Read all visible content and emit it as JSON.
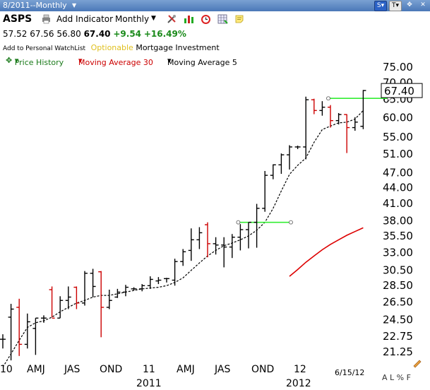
{
  "window": {
    "title": "8/2011--Monthly"
  },
  "toolbar": {
    "symbol": "ASPS",
    "add_indicator": "Add Indicator",
    "period": "Monthly",
    "icons": [
      "printer-icon",
      "tools-icon",
      "candles-icon",
      "alarm-clock-icon",
      "grid-icon",
      "note-icon"
    ]
  },
  "quote": {
    "open": "57.52",
    "high": "67.56",
    "low": "56.80",
    "last": "67.40",
    "change": "+9.54",
    "pct": "+16.49%"
  },
  "info": {
    "watchlist": "Add to Personal WatchList",
    "optionable": "Optionable",
    "industry": "Mortgage Investment"
  },
  "legend": {
    "price": {
      "label": "Price History",
      "color": "#1a7a1a"
    },
    "ma30": {
      "label": "Moving Average 30",
      "color": "#cc0000"
    },
    "ma5": {
      "label": "Moving Average 5",
      "color": "#000000"
    }
  },
  "bottom": {
    "date": "6/15/12",
    "toolbar": "A L % F"
  },
  "chart_data": {
    "type": "ohlc",
    "ytick_labels": [
      "75.00",
      "70.00",
      "65.00",
      "60.00",
      "55.00",
      "51.00",
      "47.00",
      "44.00",
      "41.00",
      "38.00",
      "35.50",
      "33.00",
      "30.50",
      "28.50",
      "26.50",
      "24.50",
      "22.75",
      "21.25"
    ],
    "y_scale": "log",
    "ylim": [
      20.2,
      76
    ],
    "last_price_label": "67.40",
    "x_labels": [
      "10",
      "AMJ",
      "JAS",
      "OND",
      "11",
      "AMJ",
      "JAS",
      "OND",
      "12"
    ],
    "year_labels": [
      "2011",
      "2012"
    ],
    "bars": [
      {
        "o": 22.4,
        "h": 22.9,
        "l": 21.5,
        "c": 22.4,
        "col": "#000"
      },
      {
        "o": 24.7,
        "h": 26.2,
        "l": 20.4,
        "c": 25.6,
        "col": "#000"
      },
      {
        "o": 25.8,
        "h": 26.8,
        "l": 20.8,
        "c": 21.9,
        "col": "#c00"
      },
      {
        "o": 21.9,
        "h": 25.1,
        "l": 21.5,
        "c": 24.2,
        "col": "#000"
      },
      {
        "o": 23.5,
        "h": 24.6,
        "l": 20.9,
        "c": 24.6,
        "col": "#000"
      },
      {
        "o": 24.6,
        "h": 24.9,
        "l": 24.1,
        "c": 24.6,
        "col": "#000"
      },
      {
        "o": 27.9,
        "h": 28.3,
        "l": 24.7,
        "c": 24.6,
        "col": "#c00"
      },
      {
        "o": 24.6,
        "h": 27.1,
        "l": 24.6,
        "c": 26.6,
        "col": "#000"
      },
      {
        "o": 26.6,
        "h": 28.3,
        "l": 25.6,
        "c": 27.0,
        "col": "#000"
      },
      {
        "o": 28.2,
        "h": 28.3,
        "l": 25.6,
        "c": 26.3,
        "col": "#c00"
      },
      {
        "o": 26.3,
        "h": 30.3,
        "l": 26.0,
        "c": 30.0,
        "col": "#000"
      },
      {
        "o": 30.0,
        "h": 30.6,
        "l": 27.0,
        "c": 28.3,
        "col": "#000"
      },
      {
        "o": 30.2,
        "h": 30.3,
        "l": 22.6,
        "c": 25.8,
        "col": "#c00"
      },
      {
        "o": 25.8,
        "h": 27.9,
        "l": 25.6,
        "c": 26.6,
        "col": "#000"
      },
      {
        "o": 27.0,
        "h": 28.0,
        "l": 26.9,
        "c": 27.6,
        "col": "#000"
      },
      {
        "o": 27.6,
        "h": 28.5,
        "l": 27.1,
        "c": 28.2,
        "col": "#000"
      },
      {
        "o": 28.0,
        "h": 28.2,
        "l": 27.8,
        "c": 28.0,
        "col": "#000"
      },
      {
        "o": 28.0,
        "h": 28.6,
        "l": 27.7,
        "c": 28.4,
        "col": "#000"
      },
      {
        "o": 28.4,
        "h": 29.6,
        "l": 28.0,
        "c": 29.2,
        "col": "#000"
      },
      {
        "o": 29.0,
        "h": 29.5,
        "l": 28.6,
        "c": 29.1,
        "col": "#000"
      },
      {
        "o": 29.3,
        "h": 29.4,
        "l": 28.8,
        "c": 29.3,
        "col": "#000"
      },
      {
        "o": 29.1,
        "h": 32.0,
        "l": 28.4,
        "c": 31.6,
        "col": "#000"
      },
      {
        "o": 31.6,
        "h": 33.4,
        "l": 31.0,
        "c": 33.0,
        "col": "#000"
      },
      {
        "o": 33.2,
        "h": 36.6,
        "l": 31.7,
        "c": 34.8,
        "col": "#000"
      },
      {
        "o": 34.8,
        "h": 36.8,
        "l": 33.4,
        "c": 35.9,
        "col": "#000"
      },
      {
        "o": 37.2,
        "h": 37.6,
        "l": 32.2,
        "c": 34.2,
        "col": "#c00"
      },
      {
        "o": 34.2,
        "h": 35.2,
        "l": 32.6,
        "c": 34.0,
        "col": "#000"
      },
      {
        "o": 34.0,
        "h": 35.2,
        "l": 30.8,
        "c": 33.7,
        "col": "#000"
      },
      {
        "o": 33.7,
        "h": 35.7,
        "l": 32.1,
        "c": 35.2,
        "col": "#000"
      },
      {
        "o": 35.2,
        "h": 37.3,
        "l": 33.2,
        "c": 36.4,
        "col": "#000"
      },
      {
        "o": 36.4,
        "h": 37.6,
        "l": 33.5,
        "c": 37.6,
        "col": "#000"
      },
      {
        "o": 37.6,
        "h": 40.8,
        "l": 33.6,
        "c": 40.0,
        "col": "#000"
      },
      {
        "o": 40.0,
        "h": 47.2,
        "l": 39.4,
        "c": 46.3,
        "col": "#000"
      },
      {
        "o": 46.3,
        "h": 48.6,
        "l": 45.5,
        "c": 48.5,
        "col": "#000"
      },
      {
        "o": 48.5,
        "h": 51.0,
        "l": 46.6,
        "c": 50.7,
        "col": "#000"
      },
      {
        "o": 50.7,
        "h": 52.9,
        "l": 47.5,
        "c": 52.5,
        "col": "#000"
      },
      {
        "o": 52.5,
        "h": 52.8,
        "l": 52.0,
        "c": 52.5,
        "col": "#000"
      },
      {
        "o": 52.5,
        "h": 65.6,
        "l": 49.7,
        "c": 64.7,
        "col": "#000"
      },
      {
        "o": 64.7,
        "h": 65.0,
        "l": 60.7,
        "c": 61.7,
        "col": "#c00"
      },
      {
        "o": 61.7,
        "h": 64.3,
        "l": 60.3,
        "c": 62.6,
        "col": "#000"
      },
      {
        "o": 62.6,
        "h": 63.2,
        "l": 57.2,
        "c": 59.0,
        "col": "#c00"
      },
      {
        "o": 59.0,
        "h": 61.0,
        "l": 58.0,
        "c": 60.6,
        "col": "#000"
      },
      {
        "o": 60.6,
        "h": 60.7,
        "l": 51.1,
        "c": 57.2,
        "col": "#c00"
      },
      {
        "o": 57.2,
        "h": 59.9,
        "l": 56.4,
        "c": 58.6,
        "col": "#000"
      },
      {
        "o": 57.52,
        "h": 67.56,
        "l": 56.8,
        "c": 67.4,
        "col": "#000"
      }
    ],
    "ma30": [
      29.6,
      30.5,
      31.5,
      32.4,
      33.3,
      34.1,
      34.8,
      35.5,
      36.1,
      36.7
    ],
    "ma5": [
      19.8,
      21.0,
      22.3,
      23.6,
      24.1,
      24.3,
      24.7,
      25.3,
      25.8,
      26.3,
      26.6,
      27.0,
      27.2,
      27.2,
      27.4,
      27.6,
      27.8,
      28.0,
      28.1,
      28.2,
      28.4,
      28.8,
      29.4,
      30.4,
      31.4,
      32.4,
      33.2,
      33.9,
      34.3,
      34.8,
      35.4,
      36.3,
      37.6,
      40.0,
      43.2,
      46.5,
      48.4,
      50.0,
      53.6,
      56.7,
      57.6,
      58.4,
      58.6,
      59.4,
      61.7
    ],
    "trendlines": [
      {
        "from_bar": 29,
        "to_bar": 35,
        "value": 37.6,
        "color": "#33ee33"
      },
      {
        "from_bar": 40,
        "to_bar": 47,
        "value": 65.1,
        "color": "#33ee33"
      }
    ]
  }
}
